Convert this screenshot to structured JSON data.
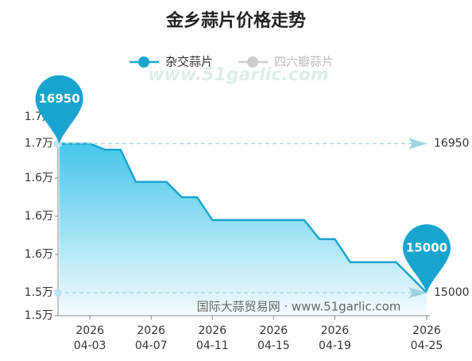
{
  "chart_data": {
    "type": "line",
    "title": "金乡蒜片价格走势",
    "watermark": "www.51garlic.com",
    "source": "国际大蒜贸易网 · www.51garlic.com",
    "x": [
      "2026-04-01",
      "2026-04-02",
      "2026-04-03",
      "2026-04-04",
      "2026-04-05",
      "2026-04-06",
      "2026-04-07",
      "2026-04-08",
      "2026-04-09",
      "2026-04-10",
      "2026-04-11",
      "2026-04-12",
      "2026-04-13",
      "2026-04-14",
      "2026-04-15",
      "2026-04-16",
      "2026-04-17",
      "2026-04-18",
      "2026-04-19",
      "2026-04-20",
      "2026-04-21",
      "2026-04-22",
      "2026-04-23",
      "2026-04-24",
      "2026-04-25"
    ],
    "series": [
      {
        "name": "杂交蒜片",
        "color": "#17a5cf",
        "values": [
          16950,
          16950,
          16950,
          16870,
          16870,
          16450,
          16450,
          16450,
          16250,
          16250,
          15950,
          15950,
          15950,
          15950,
          15950,
          15950,
          15950,
          15700,
          15700,
          15400,
          15400,
          15400,
          15400,
          15200,
          15000
        ]
      }
    ],
    "hidden_series": [
      "四六瓣蒜片"
    ],
    "ylim": [
      14700,
      17300
    ],
    "yticks": [
      {
        "value": 14700,
        "label": "1.5万"
      },
      {
        "value": 15000,
        "label": "1.5万"
      },
      {
        "value": 15500,
        "label": "1.6万"
      },
      {
        "value": 16000,
        "label": "1.6万"
      },
      {
        "value": 16500,
        "label": "1.6万"
      },
      {
        "value": 16950,
        "label": "1.7万"
      },
      {
        "value": 17300,
        "label": "1.7万"
      }
    ],
    "xticks": [
      {
        "value": "2026-04-03",
        "label": [
          "2026",
          "04-03"
        ]
      },
      {
        "value": "2026-04-07",
        "label": [
          "2026",
          "04-07"
        ]
      },
      {
        "value": "2026-04-11",
        "label": [
          "2026",
          "04-11"
        ]
      },
      {
        "value": "2026-04-15",
        "label": [
          "2026",
          "04-15"
        ]
      },
      {
        "value": "2026-04-19",
        "label": [
          "2026",
          "04-19"
        ]
      },
      {
        "value": "2026-04-25",
        "label": [
          "2026",
          "04-25"
        ]
      }
    ]
  }
}
